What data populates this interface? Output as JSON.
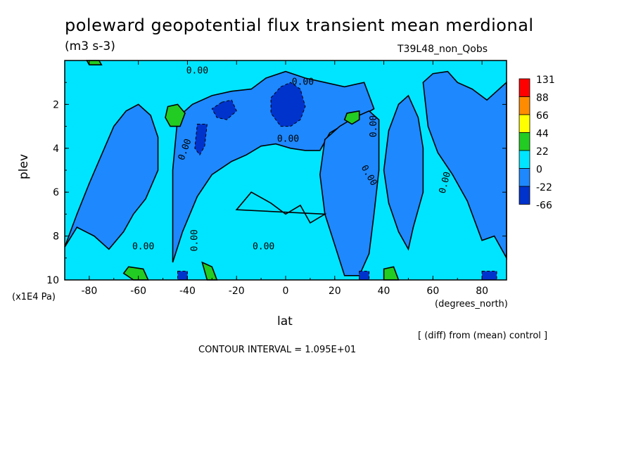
{
  "title": "poleward geopotential flux transient mean merdional",
  "units": "(m3 s-3)",
  "experiment": "T39L48_non_Qobs",
  "diff_note": "[ (diff) from (mean) control ]",
  "contour_interval": "CONTOUR INTERVAL = 1.095E+01",
  "chart_data": {
    "type": "contour",
    "title": "poleward geopotential flux transient mean merdional",
    "xlabel": "lat",
    "xunit": "(degrees_north)",
    "ylabel": "plev",
    "yunit": "(x1E4 Pa)",
    "xlim": [
      -90,
      90
    ],
    "ylim": [
      10,
      0
    ],
    "x_ticks": [
      "-80",
      "-60",
      "-40",
      "-20",
      "0",
      "20",
      "40",
      "60",
      "80"
    ],
    "y_ticks": [
      "2",
      "4",
      "6",
      "8",
      "10"
    ],
    "colorbar": {
      "levels": [
        "131",
        "88",
        "66",
        "44",
        "22",
        "0",
        "-22",
        "-66"
      ],
      "colors": [
        "#ff0000",
        "#ff8c00",
        "#ffff00",
        "#22cc22",
        "#00e5ff",
        "#1e88ff",
        "#0033cc",
        "#001f99"
      ]
    },
    "contour_label": "0.00",
    "regions": [
      {
        "level": "-22..0",
        "x": [
          -90,
          -85,
          -80,
          -75,
          -70,
          -65,
          -60,
          -55,
          -52,
          -52,
          -57,
          -62,
          -66,
          -72,
          -78,
          -85,
          -90
        ],
        "y": [
          8.5,
          7.0,
          5.6,
          4.3,
          3.0,
          2.3,
          2.0,
          2.5,
          3.5,
          5.0,
          6.3,
          7.0,
          7.8,
          8.6,
          8.0,
          7.6,
          8.5
        ]
      },
      {
        "level": "-22..0",
        "x": [
          -44,
          -38,
          -30,
          -22,
          -14,
          -8,
          0,
          8,
          16,
          24,
          32,
          36,
          30,
          24,
          18,
          14,
          8,
          2,
          -4,
          -10,
          -16,
          -22,
          -30,
          -36,
          -42,
          -46,
          -46
        ],
        "y": [
          2.6,
          2.0,
          1.6,
          1.4,
          1.3,
          0.8,
          0.5,
          0.8,
          1.0,
          1.2,
          1.0,
          2.2,
          2.6,
          2.9,
          3.3,
          4.1,
          4.1,
          4.0,
          3.8,
          3.9,
          4.3,
          4.6,
          5.2,
          6.2,
          7.8,
          9.2,
          5.0
        ]
      },
      {
        "level": "-22..0",
        "x": [
          16,
          22,
          28,
          34,
          38,
          38,
          36,
          34,
          30,
          24,
          20,
          16,
          14
        ],
        "y": [
          3.6,
          3.0,
          2.6,
          2.3,
          2.7,
          5.0,
          7.0,
          8.8,
          9.8,
          9.8,
          8.4,
          7.0,
          5.2
        ]
      },
      {
        "level": "-22..0",
        "x": [
          42,
          46,
          50,
          54,
          56,
          56,
          52,
          50,
          46,
          42,
          40
        ],
        "y": [
          3.2,
          2.0,
          1.6,
          2.6,
          4.0,
          6.0,
          7.6,
          8.6,
          7.8,
          6.5,
          5.0
        ]
      },
      {
        "level": "-22..0",
        "x": [
          56,
          60,
          66,
          70,
          76,
          82,
          88,
          90,
          90,
          85,
          80,
          74,
          68,
          62,
          58
        ],
        "y": [
          1.0,
          0.6,
          0.5,
          1.0,
          1.3,
          1.8,
          1.2,
          1.0,
          9.0,
          8.0,
          8.2,
          6.4,
          5.2,
          4.2,
          3.0
        ]
      },
      {
        "level": "-66..-22",
        "x": [
          -2,
          2,
          6,
          8,
          6,
          2,
          -2,
          -6,
          -6
        ],
        "y": [
          1.2,
          1.0,
          1.3,
          2.1,
          2.7,
          3.0,
          3.0,
          2.4,
          1.7
        ]
      },
      {
        "level": "-66..-22",
        "x": [
          -26,
          -22,
          -20,
          -24,
          -28,
          -30
        ],
        "y": [
          1.9,
          1.8,
          2.3,
          2.7,
          2.6,
          2.2
        ]
      },
      {
        "level": "-66..-22",
        "x": [
          -36,
          -32,
          -33,
          -35,
          -37
        ],
        "y": [
          2.9,
          2.9,
          3.9,
          4.3,
          4.0
        ]
      },
      {
        "level": "0..22",
        "x": [
          -20,
          -14,
          -6,
          0,
          6,
          10,
          16
        ],
        "y": [
          6.8,
          6.0,
          6.5,
          7.0,
          6.6,
          7.4,
          7.0
        ]
      },
      {
        "level": "22..44",
        "x": [
          -48,
          -44,
          -41,
          -43,
          -47,
          -49
        ],
        "y": [
          2.1,
          2.0,
          2.4,
          3.0,
          3.0,
          2.6
        ]
      },
      {
        "level": "22..44",
        "x": [
          25,
          30,
          30,
          27,
          24
        ],
        "y": [
          2.4,
          2.3,
          2.7,
          2.9,
          2.7
        ]
      },
      {
        "level": "22..44",
        "x": [
          -64,
          -58,
          -56,
          -62,
          -66
        ],
        "y": [
          9.4,
          9.5,
          10,
          10,
          9.7
        ]
      },
      {
        "level": "22..44",
        "x": [
          -34,
          -30,
          -28,
          -32
        ],
        "y": [
          9.2,
          9.4,
          10,
          10
        ]
      },
      {
        "level": "22..44",
        "x": [
          40,
          44,
          46,
          40
        ],
        "y": [
          9.5,
          9.4,
          10,
          10
        ]
      },
      {
        "level": "22..44",
        "x": [
          -81,
          -76,
          -75,
          -80
        ],
        "y": [
          0,
          0,
          0.2,
          0.2
        ]
      },
      {
        "level": "-66..-22",
        "x": [
          -44,
          -40,
          -40,
          -44
        ],
        "y": [
          9.6,
          9.6,
          10,
          10
        ]
      },
      {
        "level": "-66..-22",
        "x": [
          30,
          34,
          34,
          30
        ],
        "y": [
          9.6,
          9.6,
          10,
          10
        ]
      },
      {
        "level": "-66..-22",
        "x": [
          80,
          86,
          86,
          80
        ],
        "y": [
          9.6,
          9.6,
          10,
          10
        ]
      }
    ]
  }
}
